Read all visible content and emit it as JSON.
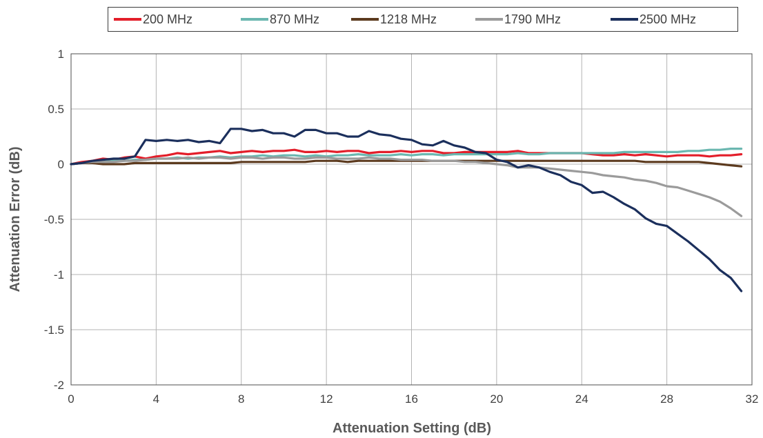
{
  "chart_data": {
    "type": "line",
    "xlabel": "Attenuation Setting (dB)",
    "ylabel": "Attenuation Error (dB)",
    "xlim": [
      0,
      32
    ],
    "ylim": [
      -2,
      1
    ],
    "xticks": [
      0,
      4,
      8,
      12,
      16,
      20,
      24,
      28,
      32
    ],
    "xtick_labels": [
      "0",
      "4",
      "8",
      "12",
      "16",
      "20",
      "24",
      "28",
      "32"
    ],
    "yticks": [
      1,
      0.5,
      0,
      -0.5,
      -1,
      -1.5,
      -2
    ],
    "ytick_labels": [
      "1",
      "0.5",
      "0",
      "-0.5",
      "-1",
      "-1.5",
      "-2"
    ],
    "grid": true,
    "legend_position": "top",
    "series": [
      {
        "name": "200 MHz",
        "color": "#e31e2a",
        "x": [
          0,
          0.5,
          1,
          1.5,
          2,
          2.5,
          3,
          3.5,
          4,
          4.5,
          5,
          5.5,
          6,
          6.5,
          7,
          7.5,
          8,
          8.5,
          9,
          9.5,
          10,
          10.5,
          11,
          11.5,
          12,
          12.5,
          13,
          13.5,
          14,
          14.5,
          15,
          15.5,
          16,
          16.5,
          17,
          17.5,
          18,
          18.5,
          19,
          19.5,
          20,
          20.5,
          21,
          21.5,
          22,
          22.5,
          23,
          23.5,
          24,
          24.5,
          25,
          25.5,
          26,
          26.5,
          27,
          27.5,
          28,
          28.5,
          29,
          29.5,
          30,
          30.5,
          31,
          31.5
        ],
        "y": [
          0,
          0.02,
          0.03,
          0.05,
          0.04,
          0.06,
          0.07,
          0.05,
          0.07,
          0.08,
          0.1,
          0.09,
          0.1,
          0.11,
          0.12,
          0.1,
          0.11,
          0.12,
          0.11,
          0.12,
          0.12,
          0.13,
          0.11,
          0.11,
          0.12,
          0.11,
          0.12,
          0.12,
          0.1,
          0.11,
          0.11,
          0.12,
          0.11,
          0.12,
          0.12,
          0.1,
          0.1,
          0.11,
          0.11,
          0.11,
          0.11,
          0.11,
          0.12,
          0.1,
          0.1,
          0.1,
          0.1,
          0.1,
          0.1,
          0.09,
          0.08,
          0.08,
          0.09,
          0.08,
          0.09,
          0.08,
          0.07,
          0.08,
          0.08,
          0.08,
          0.07,
          0.08,
          0.08,
          0.09
        ]
      },
      {
        "name": "870 MHz",
        "color": "#6bb7b0",
        "x": [
          0,
          0.5,
          1,
          1.5,
          2,
          2.5,
          3,
          3.5,
          4,
          4.5,
          5,
          5.5,
          6,
          6.5,
          7,
          7.5,
          8,
          8.5,
          9,
          9.5,
          10,
          10.5,
          11,
          11.5,
          12,
          12.5,
          13,
          13.5,
          14,
          14.5,
          15,
          15.5,
          16,
          16.5,
          17,
          17.5,
          18,
          18.5,
          19,
          19.5,
          20,
          20.5,
          21,
          21.5,
          22,
          22.5,
          23,
          23.5,
          24,
          24.5,
          25,
          25.5,
          26,
          26.5,
          27,
          27.5,
          28,
          28.5,
          29,
          29.5,
          30,
          30.5,
          31,
          31.5
        ],
        "y": [
          0,
          0.01,
          0.02,
          0.02,
          0.03,
          0.03,
          0.04,
          0.04,
          0.05,
          0.05,
          0.06,
          0.05,
          0.06,
          0.06,
          0.07,
          0.06,
          0.07,
          0.07,
          0.08,
          0.07,
          0.08,
          0.08,
          0.07,
          0.08,
          0.07,
          0.08,
          0.08,
          0.09,
          0.08,
          0.08,
          0.08,
          0.09,
          0.08,
          0.09,
          0.09,
          0.08,
          0.09,
          0.09,
          0.09,
          0.09,
          0.09,
          0.09,
          0.1,
          0.09,
          0.09,
          0.1,
          0.1,
          0.1,
          0.1,
          0.1,
          0.1,
          0.1,
          0.11,
          0.11,
          0.11,
          0.11,
          0.11,
          0.11,
          0.12,
          0.12,
          0.13,
          0.13,
          0.14,
          0.14
        ]
      },
      {
        "name": "1218 MHz",
        "color": "#5c3a1e",
        "x": [
          0,
          0.5,
          1,
          1.5,
          2,
          2.5,
          3,
          3.5,
          4,
          4.5,
          5,
          5.5,
          6,
          6.5,
          7,
          7.5,
          8,
          8.5,
          9,
          9.5,
          10,
          10.5,
          11,
          11.5,
          12,
          12.5,
          13,
          13.5,
          14,
          14.5,
          15,
          15.5,
          16,
          16.5,
          17,
          17.5,
          18,
          18.5,
          19,
          19.5,
          20,
          20.5,
          21,
          21.5,
          22,
          22.5,
          23,
          23.5,
          24,
          24.5,
          25,
          25.5,
          26,
          26.5,
          27,
          27.5,
          28,
          28.5,
          29,
          29.5,
          30,
          30.5,
          31,
          31.5
        ],
        "y": [
          0,
          0.01,
          0.01,
          0.0,
          0.0,
          0.0,
          0.01,
          0.01,
          0.01,
          0.01,
          0.01,
          0.01,
          0.01,
          0.01,
          0.01,
          0.01,
          0.02,
          0.02,
          0.02,
          0.02,
          0.02,
          0.02,
          0.02,
          0.03,
          0.03,
          0.03,
          0.02,
          0.03,
          0.03,
          0.03,
          0.03,
          0.03,
          0.03,
          0.03,
          0.03,
          0.03,
          0.03,
          0.03,
          0.03,
          0.03,
          0.03,
          0.03,
          0.03,
          0.03,
          0.03,
          0.03,
          0.03,
          0.03,
          0.03,
          0.03,
          0.03,
          0.03,
          0.03,
          0.03,
          0.02,
          0.02,
          0.02,
          0.02,
          0.02,
          0.02,
          0.01,
          0.0,
          -0.01,
          -0.02
        ]
      },
      {
        "name": "1790 MHz",
        "color": "#9b9b9b",
        "x": [
          0,
          0.5,
          1,
          1.5,
          2,
          2.5,
          3,
          3.5,
          4,
          4.5,
          5,
          5.5,
          6,
          6.5,
          7,
          7.5,
          8,
          8.5,
          9,
          9.5,
          10,
          10.5,
          11,
          11.5,
          12,
          12.5,
          13,
          13.5,
          14,
          14.5,
          15,
          15.5,
          16,
          16.5,
          17,
          17.5,
          18,
          18.5,
          19,
          19.5,
          20,
          20.5,
          21,
          21.5,
          22,
          22.5,
          23,
          23.5,
          24,
          24.5,
          25,
          25.5,
          26,
          26.5,
          27,
          27.5,
          28,
          28.5,
          29,
          29.5,
          30,
          30.5,
          31,
          31.5
        ],
        "y": [
          0,
          0.01,
          0.02,
          0.02,
          0.02,
          0.03,
          0.03,
          0.04,
          0.05,
          0.05,
          0.05,
          0.06,
          0.05,
          0.06,
          0.06,
          0.05,
          0.06,
          0.06,
          0.05,
          0.06,
          0.06,
          0.05,
          0.05,
          0.06,
          0.06,
          0.05,
          0.05,
          0.05,
          0.06,
          0.05,
          0.05,
          0.04,
          0.04,
          0.04,
          0.03,
          0.03,
          0.03,
          0.02,
          0.02,
          0.01,
          0.0,
          -0.01,
          -0.03,
          -0.03,
          -0.03,
          -0.04,
          -0.05,
          -0.06,
          -0.07,
          -0.08,
          -0.1,
          -0.11,
          -0.12,
          -0.14,
          -0.15,
          -0.17,
          -0.2,
          -0.21,
          -0.24,
          -0.27,
          -0.3,
          -0.34,
          -0.4,
          -0.47
        ]
      },
      {
        "name": "2500 MHz",
        "color": "#1b2f5c",
        "x": [
          0,
          0.5,
          1,
          1.5,
          2,
          2.5,
          3,
          3.5,
          4,
          4.5,
          5,
          5.5,
          6,
          6.5,
          7,
          7.5,
          8,
          8.5,
          9,
          9.5,
          10,
          10.5,
          11,
          11.5,
          12,
          12.5,
          13,
          13.5,
          14,
          14.5,
          15,
          15.5,
          16,
          16.5,
          17,
          17.5,
          18,
          18.5,
          19,
          19.5,
          20,
          20.5,
          21,
          21.5,
          22,
          22.5,
          23,
          23.5,
          24,
          24.5,
          25,
          25.5,
          26,
          26.5,
          27,
          27.5,
          28,
          28.5,
          29,
          29.5,
          30,
          30.5,
          31,
          31.5
        ],
        "y": [
          0,
          0.01,
          0.03,
          0.04,
          0.05,
          0.05,
          0.07,
          0.22,
          0.21,
          0.22,
          0.21,
          0.22,
          0.2,
          0.21,
          0.19,
          0.32,
          0.32,
          0.3,
          0.31,
          0.28,
          0.28,
          0.25,
          0.31,
          0.31,
          0.28,
          0.28,
          0.25,
          0.25,
          0.3,
          0.27,
          0.26,
          0.23,
          0.22,
          0.18,
          0.17,
          0.21,
          0.17,
          0.15,
          0.11,
          0.1,
          0.04,
          0.02,
          -0.03,
          -0.01,
          -0.03,
          -0.07,
          -0.1,
          -0.16,
          -0.19,
          -0.26,
          -0.25,
          -0.3,
          -0.36,
          -0.41,
          -0.49,
          -0.54,
          -0.56,
          -0.63,
          -0.7,
          -0.78,
          -0.86,
          -0.96,
          -1.03,
          -1.15
        ]
      }
    ]
  }
}
